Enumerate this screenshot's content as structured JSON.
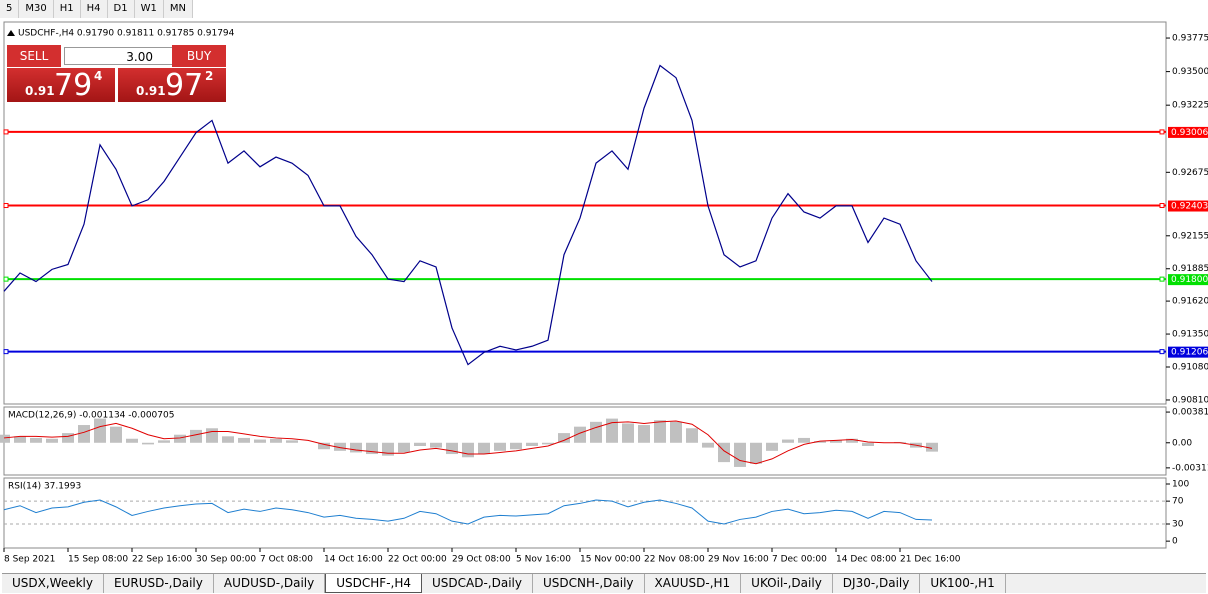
{
  "toolbar": [
    "5",
    "M30",
    "H1",
    "H4",
    "D1",
    "W1",
    "MN"
  ],
  "header": "USDCHF-,H4  0.91790 0.91811 0.91785 0.91794",
  "trade_panel": {
    "sell": "SELL",
    "buy": "BUY",
    "volume": "3.00",
    "bid": {
      "big": "0.91",
      "main": "79",
      "small": "4"
    },
    "ask": {
      "big": "0.91",
      "main": "97",
      "small": "2"
    }
  },
  "chart_data": [
    {
      "type": "line",
      "color": "#00008b",
      "categories": [
        "8 Sep 2021",
        null,
        null,
        null,
        "15 Sep 08:00",
        null,
        null,
        null,
        "22 Sep 16:00",
        null,
        null,
        null,
        "30 Sep 00:00",
        null,
        null,
        null,
        "7 Oct 08:00",
        null,
        null,
        null,
        "14 Oct 16:00",
        null,
        null,
        null,
        "22 Oct 00:00",
        null,
        null,
        null,
        "29 Oct 08:00",
        null,
        null,
        null,
        "5 Nov 16:00",
        null,
        null,
        null,
        "15 Nov 00:00",
        null,
        null,
        null,
        "22 Nov 08:00",
        null,
        null,
        null,
        "29 Nov 16:00",
        null,
        null,
        null,
        "7 Dec 00:00",
        null,
        null,
        null,
        "14 Dec 08:00",
        null,
        null,
        null,
        "21 Dec 16:00",
        null,
        null
      ],
      "values": [
        0.917,
        0.9185,
        0.9178,
        0.9188,
        0.9192,
        0.9225,
        0.929,
        0.927,
        0.924,
        0.9245,
        0.926,
        0.928,
        0.93,
        0.931,
        0.9275,
        0.9285,
        0.9272,
        0.928,
        0.9275,
        0.9265,
        0.924,
        0.924,
        0.9215,
        0.92,
        0.918,
        0.9178,
        0.9195,
        0.919,
        0.914,
        0.911,
        0.912,
        0.9125,
        0.9122,
        0.9125,
        0.913,
        0.92,
        0.923,
        0.9275,
        0.9285,
        0.927,
        0.932,
        0.9355,
        0.9345,
        0.931,
        0.924,
        0.92,
        0.919,
        0.9195,
        0.923,
        0.925,
        0.9235,
        0.923,
        0.924,
        0.924,
        0.921,
        0.923,
        0.9225,
        0.9195,
        0.9178
      ],
      "ylim": [
        0.90777,
        0.9389
      ],
      "yticks": [
        {
          "value": 0.93775,
          "label": "0.93775"
        },
        {
          "value": 0.935,
          "label": "0.93500"
        },
        {
          "value": 0.93225,
          "label": "0.93225"
        },
        {
          "value": 0.92675,
          "label": "0.92675"
        },
        {
          "value": 0.92155,
          "label": "0.92155"
        },
        {
          "value": 0.91885,
          "label": "0.91885"
        },
        {
          "value": 0.9162,
          "label": "0.91620"
        },
        {
          "value": 0.9135,
          "label": "0.91350"
        },
        {
          "value": 0.9108,
          "label": "0.91080"
        },
        {
          "value": 0.9081,
          "label": "0.90810"
        }
      ],
      "levels": [
        {
          "value": 0.93006,
          "color": "#ff0000"
        },
        {
          "value": 0.92403,
          "color": "#ff0000"
        },
        {
          "value": 0.918,
          "label": "0.91800",
          "color": "#00e000"
        },
        {
          "value": 0.91206,
          "color": "#0000dd"
        }
      ]
    },
    {
      "type": "macd",
      "title": "MACD(12,26,9) -0.001134 -0.000705",
      "hist_color": "#c0c0c0",
      "signal_color": "#e00000",
      "values": [
        0.001,
        0.0008,
        0.0006,
        0.0005,
        0.0012,
        0.0022,
        0.003,
        0.002,
        0.0005,
        -0.0002,
        0.0003,
        0.001,
        0.0016,
        0.0018,
        0.0008,
        0.0006,
        0.0004,
        0.0005,
        0.0003,
        0.0,
        -0.0008,
        -0.001,
        -0.0012,
        -0.0014,
        -0.0016,
        -0.0012,
        -0.0004,
        -0.0006,
        -0.0014,
        -0.0018,
        -0.0014,
        -0.001,
        -0.0008,
        -0.0004,
        -0.0002,
        0.0012,
        0.002,
        0.0026,
        0.003,
        0.0024,
        0.0022,
        0.0028,
        0.0026,
        0.0018,
        -0.0006,
        -0.0024,
        -0.003,
        -0.0026,
        -0.001,
        0.0004,
        0.0006,
        0.0002,
        0.0003,
        0.0005,
        -0.0004,
        0.0,
        0.0001,
        -0.0006,
        -0.0011
      ],
      "signal": [
        0.0006,
        0.0008,
        0.0008,
        0.0007,
        0.0008,
        0.0013,
        0.002,
        0.0024,
        0.0018,
        0.001,
        0.0005,
        0.0006,
        0.001,
        0.0014,
        0.0014,
        0.0011,
        0.0008,
        0.0006,
        0.0005,
        0.0003,
        -0.0002,
        -0.0006,
        -0.0009,
        -0.0011,
        -0.0013,
        -0.0013,
        -0.0009,
        -0.0007,
        -0.001,
        -0.0014,
        -0.0014,
        -0.0012,
        -0.001,
        -0.0007,
        -0.0004,
        0.0003,
        0.0012,
        0.0019,
        0.0025,
        0.0026,
        0.0024,
        0.0026,
        0.0027,
        0.0023,
        0.001,
        -0.001,
        -0.0022,
        -0.0026,
        -0.002,
        -0.001,
        -0.0002,
        0.0002,
        0.0003,
        0.0004,
        0.0001,
        0.0,
        0.0,
        -0.0003,
        -0.0007
      ],
      "ylim": [
        -0.004,
        0.00444
      ],
      "yticks": [
        0.003811,
        {
          "value": 0,
          "label": "0.00"
        },
        -0.003115
      ]
    },
    {
      "type": "rsi",
      "title": "RSI(14) 37.1993",
      "color": "#1f7fd0",
      "values": [
        55,
        62,
        50,
        58,
        60,
        68,
        72,
        60,
        45,
        52,
        58,
        62,
        65,
        66,
        50,
        56,
        52,
        58,
        55,
        50,
        42,
        45,
        40,
        38,
        35,
        40,
        52,
        48,
        35,
        30,
        42,
        45,
        44,
        46,
        48,
        62,
        66,
        72,
        70,
        60,
        68,
        72,
        66,
        58,
        35,
        30,
        38,
        42,
        52,
        56,
        48,
        50,
        54,
        52,
        40,
        52,
        50,
        38,
        37
      ],
      "ylim": [
        -12,
        110.5
      ],
      "yticks": [
        100,
        70,
        30,
        0
      ],
      "levels": [
        70,
        30
      ]
    }
  ],
  "tabs": [
    "USDX,Weekly",
    "EURUSD-,Daily",
    "AUDUSD-,Daily",
    "USDCHF-,H4",
    "USDCAD-,Daily",
    "USDCNH-,Daily",
    "XAUUSD-,H1",
    "UKOil-,Daily",
    "DJ30-,Daily",
    "UK100-,H1"
  ],
  "active_tab": "USDCHF-,H4"
}
